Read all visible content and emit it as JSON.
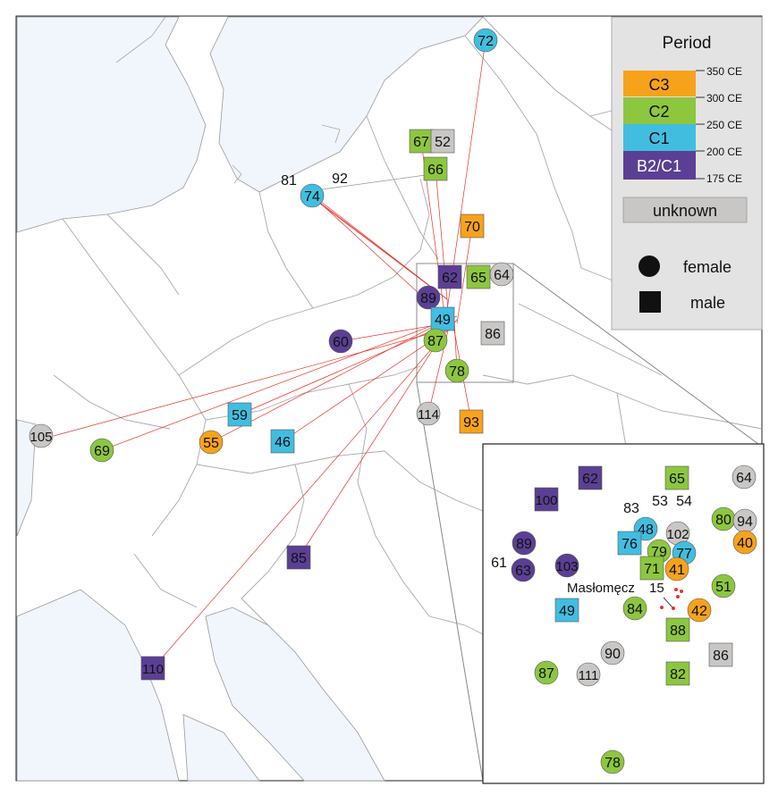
{
  "legend": {
    "title": "Period",
    "periods": [
      {
        "label": "C3",
        "color": "#f7a21b"
      },
      {
        "label": "C2",
        "color": "#8dc63f"
      },
      {
        "label": "C1",
        "color": "#41bde0"
      },
      {
        "label": "B2/C1",
        "color": "#5b3f94"
      }
    ],
    "dates": [
      "350 CE",
      "300 CE",
      "250 CE",
      "200 CE",
      "175 CE"
    ],
    "unknown": {
      "label": "unknown",
      "color": "#c9c7c6"
    },
    "female_label": "female",
    "male_label": "male"
  },
  "colors": {
    "C3": "#f7a21b",
    "C2": "#8dc63f",
    "C1": "#41bde0",
    "B2C1": "#5b3f94",
    "unknown": "#c9c7c6",
    "sea": "#f1f5fc",
    "land": "#ffffff",
    "border": "#a9a9a9",
    "link": "#e8332b"
  },
  "site": {
    "name": "Masłomęcz",
    "code": "15"
  },
  "map_markers": [
    {
      "id": "72",
      "shape": "circle",
      "period": "C1"
    },
    {
      "id": "67",
      "shape": "square",
      "period": "C2"
    },
    {
      "id": "52",
      "shape": "square",
      "period": "unknown"
    },
    {
      "id": "66",
      "shape": "square",
      "period": "C2"
    },
    {
      "id": "74",
      "shape": "circle",
      "period": "C1"
    },
    {
      "id": "81",
      "shape": "label",
      "period": ""
    },
    {
      "id": "92",
      "shape": "label",
      "period": ""
    },
    {
      "id": "70",
      "shape": "square",
      "period": "C3"
    },
    {
      "id": "62",
      "shape": "square",
      "period": "B2C1"
    },
    {
      "id": "65",
      "shape": "square",
      "period": "C2"
    },
    {
      "id": "64",
      "shape": "circle",
      "period": "unknown"
    },
    {
      "id": "89",
      "shape": "circle",
      "period": "B2C1"
    },
    {
      "id": "49",
      "shape": "square",
      "period": "C1"
    },
    {
      "id": "86",
      "shape": "square",
      "period": "unknown"
    },
    {
      "id": "87",
      "shape": "circle",
      "period": "C2"
    },
    {
      "id": "60",
      "shape": "circle",
      "period": "B2C1"
    },
    {
      "id": "78",
      "shape": "circle",
      "period": "C2"
    },
    {
      "id": "114",
      "shape": "circle",
      "period": "unknown"
    },
    {
      "id": "93",
      "shape": "square",
      "period": "C3"
    },
    {
      "id": "59",
      "shape": "square",
      "period": "C1"
    },
    {
      "id": "105",
      "shape": "circle",
      "period": "unknown"
    },
    {
      "id": "69",
      "shape": "circle",
      "period": "C2"
    },
    {
      "id": "55",
      "shape": "circle",
      "period": "C3"
    },
    {
      "id": "46",
      "shape": "square",
      "period": "C1"
    },
    {
      "id": "85",
      "shape": "square",
      "period": "B2C1"
    },
    {
      "id": "110",
      "shape": "square",
      "period": "B2C1"
    }
  ],
  "inset_markers": [
    {
      "id": "62",
      "shape": "square",
      "period": "B2C1"
    },
    {
      "id": "65",
      "shape": "square",
      "period": "C2"
    },
    {
      "id": "64",
      "shape": "circle",
      "period": "unknown"
    },
    {
      "id": "100",
      "shape": "square",
      "period": "B2C1"
    },
    {
      "id": "83",
      "shape": "label",
      "period": ""
    },
    {
      "id": "53",
      "shape": "label",
      "period": ""
    },
    {
      "id": "54",
      "shape": "label",
      "period": ""
    },
    {
      "id": "80",
      "shape": "circle",
      "period": "C2"
    },
    {
      "id": "94",
      "shape": "circle",
      "period": "unknown"
    },
    {
      "id": "48",
      "shape": "circle",
      "period": "C1"
    },
    {
      "id": "102",
      "shape": "circle",
      "period": "unknown"
    },
    {
      "id": "40",
      "shape": "circle",
      "period": "C3"
    },
    {
      "id": "89",
      "shape": "circle",
      "period": "B2C1"
    },
    {
      "id": "76",
      "shape": "square",
      "period": "C1"
    },
    {
      "id": "79",
      "shape": "circle",
      "period": "C2"
    },
    {
      "id": "77",
      "shape": "circle",
      "period": "C1"
    },
    {
      "id": "61",
      "shape": "label",
      "period": ""
    },
    {
      "id": "63",
      "shape": "circle",
      "period": "B2C1"
    },
    {
      "id": "103",
      "shape": "circle",
      "period": "B2C1"
    },
    {
      "id": "71",
      "shape": "square",
      "period": "C2"
    },
    {
      "id": "41",
      "shape": "circle",
      "period": "C3"
    },
    {
      "id": "51",
      "shape": "circle",
      "period": "C2"
    },
    {
      "id": "49",
      "shape": "square",
      "period": "C1"
    },
    {
      "id": "84",
      "shape": "circle",
      "period": "C2"
    },
    {
      "id": "42",
      "shape": "circle",
      "period": "C3"
    },
    {
      "id": "88",
      "shape": "square",
      "period": "C2"
    },
    {
      "id": "86",
      "shape": "square",
      "period": "unknown"
    },
    {
      "id": "90",
      "shape": "circle",
      "period": "unknown"
    },
    {
      "id": "87",
      "shape": "circle",
      "period": "C2"
    },
    {
      "id": "111",
      "shape": "circle",
      "period": "unknown"
    },
    {
      "id": "82",
      "shape": "square",
      "period": "C2"
    },
    {
      "id": "78",
      "shape": "circle",
      "period": "C2"
    }
  ]
}
